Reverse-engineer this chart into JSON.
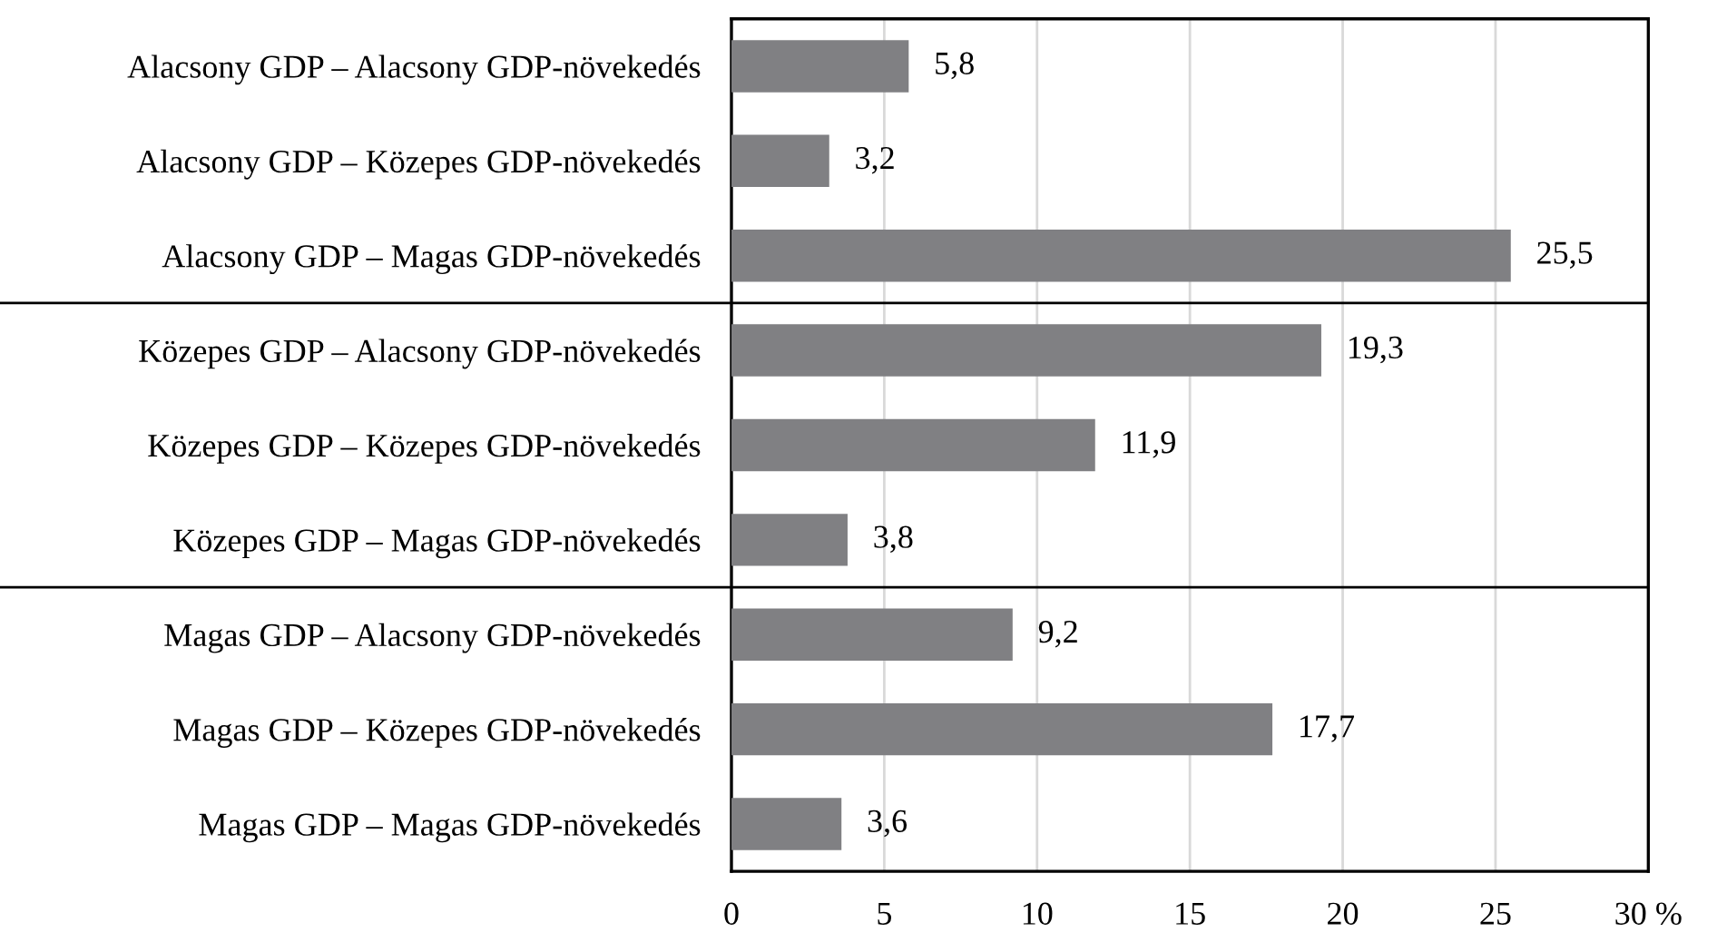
{
  "chart_data": {
    "type": "bar",
    "orientation": "horizontal",
    "categories": [
      "Alacsony GDP – Alacsony GDP-növekedés",
      "Alacsony GDP – Közepes GDP-növekedés",
      "Alacsony GDP – Magas GDP-növekedés",
      "Közepes GDP – Alacsony GDP-növekedés",
      "Közepes GDP – Közepes GDP-növekedés",
      "Közepes GDP – Magas GDP-növekedés",
      "Magas GDP – Alacsony GDP-növekedés",
      "Magas GDP – Közepes GDP-növekedés",
      "Magas GDP – Magas GDP-növekedés"
    ],
    "values": [
      5.8,
      3.2,
      25.5,
      19.3,
      11.9,
      3.8,
      9.2,
      17.7,
      3.6
    ],
    "value_labels": [
      "5,8",
      "3,2",
      "25,5",
      "19,3",
      "11,9",
      "3,8",
      "9,2",
      "17,7",
      "3,6"
    ],
    "color": "#808083",
    "xlim": [
      0,
      30
    ],
    "xticks": [
      0,
      5,
      10,
      15,
      20,
      25,
      {
        "value": 30,
        "label": "30 %"
      }
    ],
    "grid": "x"
  }
}
